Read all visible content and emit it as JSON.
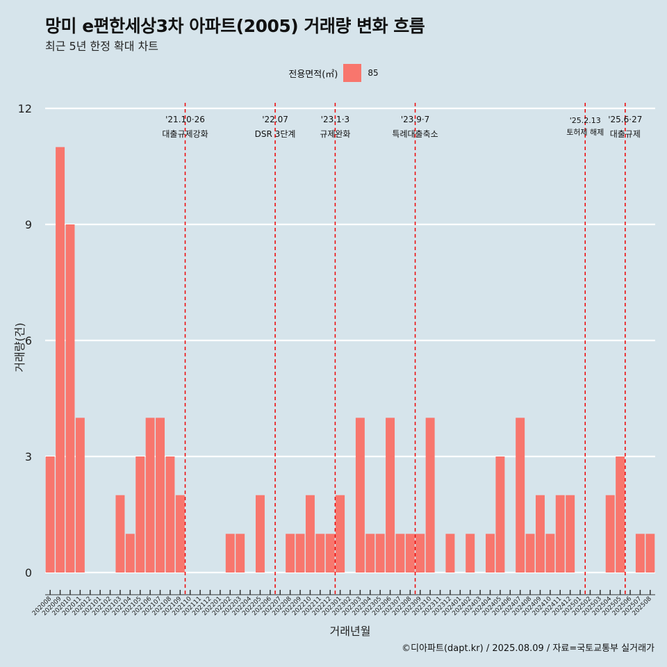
{
  "title": "망미 e편한세상3차 아파트(2005) 거래량 변화 흐름",
  "subtitle": "최근 5년 한정 확대 차트",
  "caption": "©디아파트(dapt.kr) / 2025.08.09 / 자료=국토교통부 실거래가",
  "legend": {
    "title": "전용면적(㎡)",
    "label": "85",
    "color": "#f8766d"
  },
  "chart_data": {
    "type": "bar",
    "title": "망미 e편한세상3차 아파트(2005) 거래량 변화 흐름",
    "xlabel": "거래년월",
    "ylabel": "거래량(건)",
    "ylim": [
      0,
      12
    ],
    "yticks": [
      0,
      3,
      6,
      9,
      12
    ],
    "grid": "horizontal",
    "legend_position": "top",
    "bar_color": "#f8766d",
    "categories": [
      "202008",
      "202009",
      "202010",
      "202011",
      "202012",
      "202101",
      "202102",
      "202103",
      "202104",
      "202105",
      "202106",
      "202107",
      "202108",
      "202109",
      "202110",
      "202111",
      "202112",
      "202201",
      "202202",
      "202203",
      "202204",
      "202205",
      "202206",
      "202207",
      "202208",
      "202209",
      "202210",
      "202211",
      "202212",
      "202301",
      "202302",
      "202303",
      "202304",
      "202305",
      "202306",
      "202307",
      "202308",
      "202309",
      "202310",
      "202311",
      "202312",
      "202401",
      "202402",
      "202403",
      "202404",
      "202405",
      "202406",
      "202407",
      "202408",
      "202409",
      "202410",
      "202411",
      "202412",
      "202501",
      "202502",
      "202503",
      "202504",
      "202505",
      "202506",
      "202507",
      "202508"
    ],
    "series": [
      {
        "name": "85",
        "values": [
          3,
          11,
          9,
          4,
          0,
          0,
          0,
          2,
          1,
          3,
          4,
          4,
          3,
          2,
          0,
          0,
          0,
          0,
          1,
          1,
          0,
          2,
          0,
          0,
          1,
          1,
          2,
          1,
          1,
          2,
          0,
          4,
          1,
          1,
          4,
          1,
          1,
          1,
          4,
          0,
          1,
          0,
          1,
          0,
          1,
          3,
          0,
          4,
          1,
          2,
          1,
          2,
          2,
          0,
          0,
          0,
          2,
          3,
          0,
          1,
          1
        ]
      }
    ],
    "annotations": [
      {
        "x": "202110",
        "date": "'21.10·26",
        "label": "대출규제강화"
      },
      {
        "x": "202207",
        "date": "'22.07",
        "label": "DSR 3단계"
      },
      {
        "x": "202301",
        "date": "'23.1·3",
        "label": "규제완화"
      },
      {
        "x": "202309",
        "date": "'23.9·7",
        "label": "특례대출축소"
      },
      {
        "x": "202502",
        "date": "'25.2.13",
        "label": "토허제 해제"
      },
      {
        "x": "202506",
        "date": "'25.6·27",
        "label": "대출규제"
      }
    ]
  }
}
